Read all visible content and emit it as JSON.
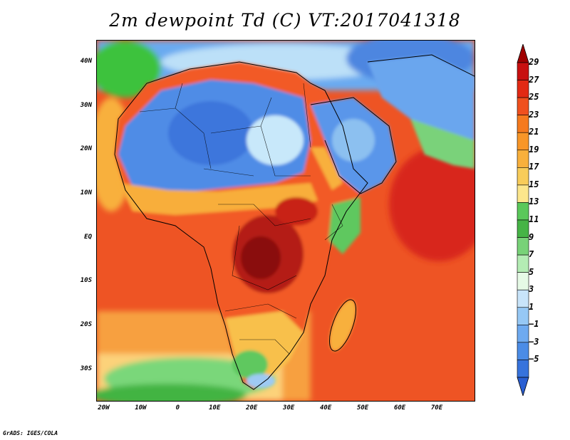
{
  "title": "2m dewpoint Td (C) VT:2017041318",
  "credit": "GrADS: IGES/COLA",
  "map": {
    "lon_range": [
      -22,
      80
    ],
    "lat_range": [
      -37,
      45
    ],
    "lat_ticks": [
      {
        "value": 40,
        "label": "40N"
      },
      {
        "value": 30,
        "label": "30N"
      },
      {
        "value": 20,
        "label": "20N"
      },
      {
        "value": 10,
        "label": "10N"
      },
      {
        "value": 0,
        "label": "EQ"
      },
      {
        "value": -10,
        "label": "10S"
      },
      {
        "value": -20,
        "label": "20S"
      },
      {
        "value": -30,
        "label": "30S"
      }
    ],
    "lon_ticks": [
      {
        "value": -20,
        "label": "20W"
      },
      {
        "value": -10,
        "label": "10W"
      },
      {
        "value": 0,
        "label": "0"
      },
      {
        "value": 10,
        "label": "10E"
      },
      {
        "value": 20,
        "label": "20E"
      },
      {
        "value": 30,
        "label": "30E"
      },
      {
        "value": 40,
        "label": "40E"
      },
      {
        "value": 50,
        "label": "50E"
      },
      {
        "value": 60,
        "label": "60E"
      },
      {
        "value": 70,
        "label": "70E"
      }
    ]
  },
  "colorbar": {
    "labels": [
      "29",
      "27",
      "25",
      "23",
      "21",
      "19",
      "17",
      "15",
      "13",
      "11",
      "9",
      "7",
      "5",
      "3",
      "1",
      "−1",
      "−3",
      "−5"
    ],
    "colors": [
      "#a00000",
      "#c81010",
      "#e22a14",
      "#f0501e",
      "#f57a1e",
      "#f89628",
      "#f8b03c",
      "#f8cc5a",
      "#fce68c",
      "#5ac85a",
      "#46b446",
      "#78d278",
      "#b4ecb4",
      "#e6fae6",
      "#c8e4fa",
      "#96c8f5",
      "#6eaaf0",
      "#4b8ce6",
      "#3773dc",
      "#2a5fd2"
    ]
  }
}
